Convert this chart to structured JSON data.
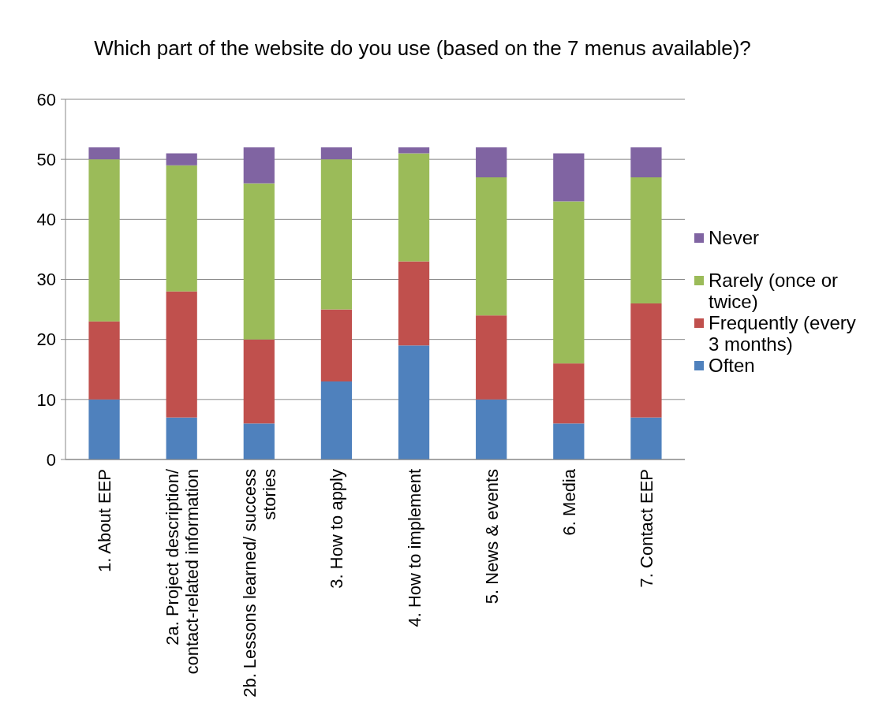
{
  "chart_data": {
    "type": "bar",
    "stacked": true,
    "title": "Which part of the website do you use (based on the 7 menus available)?",
    "categories": [
      "1. About EEP",
      "2a. Project description/ contact-related information",
      "2b. Lessons learned/ success stories",
      "3. How to apply",
      "4. How to implement",
      "5. News & events",
      "6. Media",
      "7. Contact EEP"
    ],
    "series": [
      {
        "name": "Often",
        "color": "#4f81bd",
        "values": [
          10,
          7,
          6,
          13,
          19,
          10,
          6,
          7
        ]
      },
      {
        "name": "Frequently (every 3 months)",
        "color": "#c0504d",
        "values": [
          13,
          21,
          14,
          12,
          14,
          14,
          10,
          19
        ]
      },
      {
        "name": "Rarely (once or twice)",
        "color": "#9bbb59",
        "values": [
          27,
          21,
          26,
          25,
          18,
          23,
          27,
          21
        ]
      },
      {
        "name": "Never",
        "color": "#8064a2",
        "values": [
          2,
          2,
          6,
          2,
          1,
          5,
          8,
          5
        ]
      }
    ],
    "ylim": [
      0,
      60
    ],
    "yticks": [
      0,
      10,
      20,
      30,
      40,
      50,
      60
    ],
    "grid": "y",
    "legend": "right"
  }
}
